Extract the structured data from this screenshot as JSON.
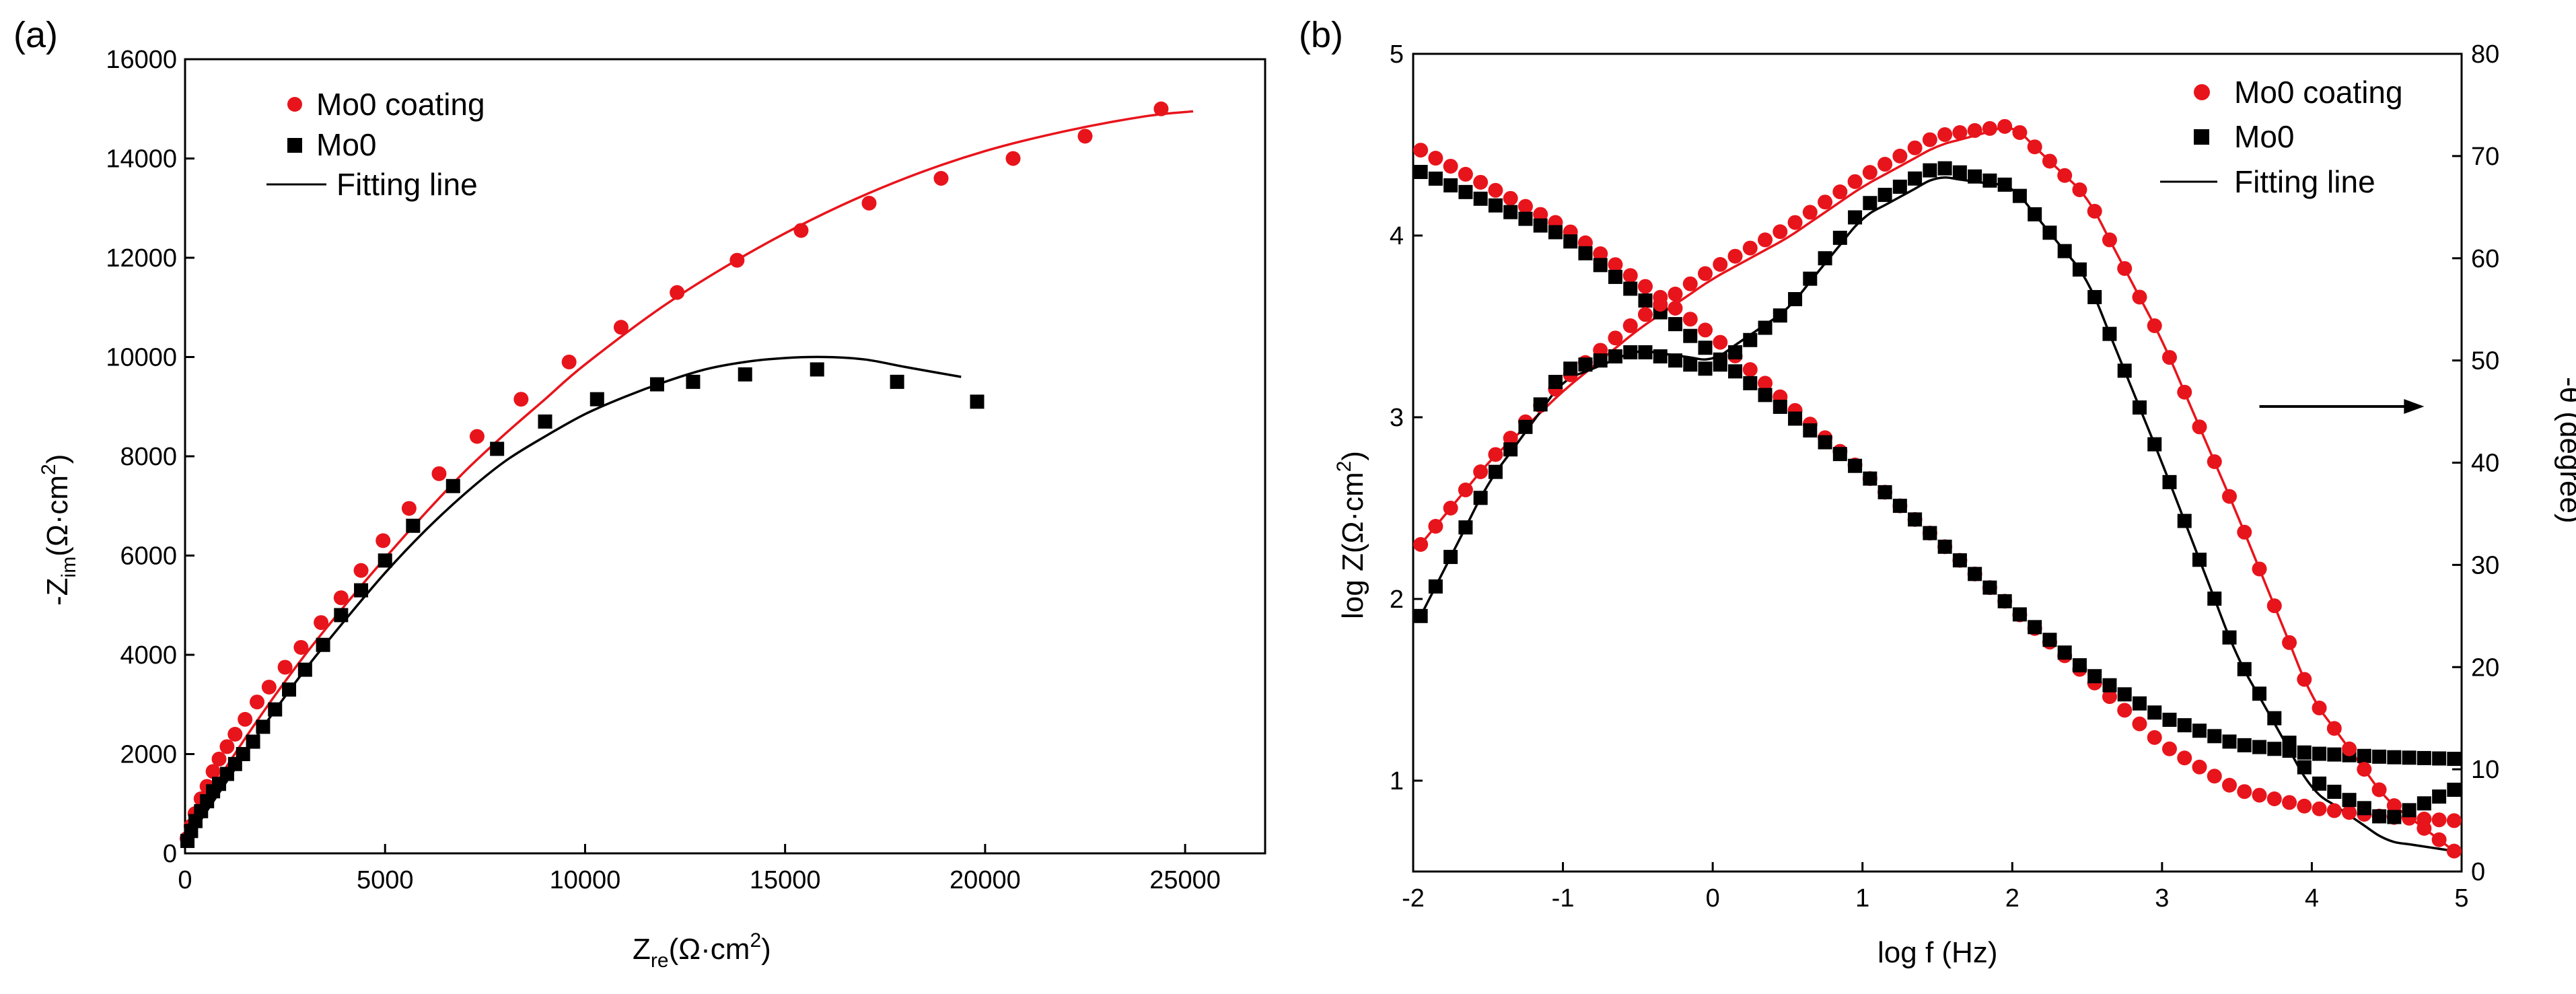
{
  "chart_data": [
    {
      "panel_label": "(a)",
      "type": "scatter",
      "xlabel": {
        "main": "Z",
        "sub": "re",
        "unit": "(Ω·cm",
        "sup": "2",
        "close": ")"
      },
      "ylabel": {
        "main": "-Z",
        "sub": "im",
        "unit": "(Ω·cm",
        "sup": "2",
        "close": ")"
      },
      "xlim": [
        0,
        27000
      ],
      "ylim": [
        0,
        16000
      ],
      "xticks": [
        0,
        5000,
        10000,
        15000,
        20000,
        25000
      ],
      "yticks": [
        0,
        2000,
        4000,
        6000,
        8000,
        10000,
        12000,
        14000,
        16000
      ],
      "grid": false,
      "legend_position": "top-left",
      "legend": [
        {
          "label": "Mo0 coating",
          "marker": "circle",
          "color": "#e8141b"
        },
        {
          "label": "Mo0",
          "marker": "square",
          "color": "#000000"
        },
        {
          "label": "Fitting line",
          "marker": "line",
          "color": "#000000"
        }
      ],
      "series": [
        {
          "name": "Mo0 coating",
          "color": "#e8141b",
          "marker": "circle",
          "x": [
            50,
            150,
            250,
            400,
            550,
            700,
            850,
            1050,
            1250,
            1500,
            1800,
            2100,
            2500,
            2900,
            3400,
            3900,
            4400,
            4950,
            5600,
            6350,
            7300,
            8400,
            9600,
            10900,
            12300,
            13800,
            15400,
            17100,
            18900,
            20700,
            22500,
            24400
          ],
          "y": [
            300,
            550,
            800,
            1100,
            1350,
            1650,
            1900,
            2150,
            2400,
            2700,
            3050,
            3350,
            3750,
            4150,
            4650,
            5150,
            5700,
            6300,
            6950,
            7650,
            8400,
            9150,
            9900,
            10600,
            11300,
            11950,
            12550,
            13100,
            13600,
            14000,
            14450,
            15000
          ]
        },
        {
          "name": "Mo0",
          "color": "#000000",
          "marker": "square",
          "x": [
            60,
            150,
            260,
            400,
            550,
            700,
            850,
            1050,
            1250,
            1450,
            1700,
            1950,
            2250,
            2600,
            3000,
            3450,
            3900,
            4400,
            5000,
            5700,
            6700,
            7800,
            9000,
            10300,
            11800,
            12700,
            14000,
            15800,
            17800,
            19800
          ],
          "y": [
            250,
            450,
            650,
            850,
            1050,
            1250,
            1400,
            1600,
            1800,
            2000,
            2250,
            2550,
            2900,
            3300,
            3700,
            4200,
            4800,
            5300,
            5900,
            6600,
            7400,
            8150,
            8700,
            9150,
            9450,
            9500,
            9650,
            9750,
            9500,
            9100
          ]
        },
        {
          "name": "Mo0 coating fit",
          "color": "#e8141b",
          "marker": "line",
          "x": [
            0,
            500,
            1000,
            2000,
            3000,
            4000,
            5000,
            6000,
            7000,
            8000,
            9000,
            10000,
            12000,
            14000,
            16000,
            18000,
            20000,
            22000,
            24000,
            25200
          ],
          "y": [
            200,
            1000,
            1700,
            2900,
            4000,
            5000,
            5950,
            6850,
            7700,
            8450,
            9150,
            9850,
            11050,
            12050,
            12900,
            13600,
            14150,
            14550,
            14850,
            14950
          ]
        },
        {
          "name": "Mo0 fit",
          "color": "#000000",
          "marker": "line",
          "x": [
            0,
            500,
            1000,
            2000,
            3000,
            4000,
            5000,
            6000,
            7000,
            8000,
            9000,
            10000,
            11000,
            12000,
            13000,
            14000,
            15000,
            16000,
            17000,
            18000,
            19400
          ],
          "y": [
            200,
            800,
            1400,
            2600,
            3700,
            4700,
            5650,
            6500,
            7250,
            7900,
            8400,
            8850,
            9200,
            9500,
            9750,
            9900,
            9980,
            10000,
            9950,
            9800,
            9600
          ]
        }
      ]
    },
    {
      "panel_label": "(b)",
      "type": "scatter",
      "xlabel": "log f (Hz)",
      "ylabel_left": {
        "main": "log Z(Ω·cm",
        "sup": "2",
        "close": ")"
      },
      "ylabel_right": "-θ (degree)",
      "xlim": [
        -2,
        5
      ],
      "ylim_left": [
        0.5,
        5
      ],
      "ylim_right": [
        0,
        80
      ],
      "xticks": [
        -2,
        -1,
        0,
        1,
        2,
        3,
        4,
        5
      ],
      "yticks_left": [
        1,
        2,
        3,
        4,
        5
      ],
      "yticks_right": [
        0,
        10,
        20,
        30,
        40,
        50,
        60,
        70,
        80
      ],
      "grid": false,
      "legend_position": "top-right",
      "legend": [
        {
          "label": "Mo0 coating",
          "marker": "circle",
          "color": "#e8141b"
        },
        {
          "label": "Mo0",
          "marker": "square",
          "color": "#000000"
        },
        {
          "label": "Fitting line",
          "marker": "line",
          "color": "#000000"
        }
      ],
      "annotation": {
        "type": "arrow",
        "direction": "right",
        "points_to": "right axis",
        "from": [
          3.65,
          45.5
        ],
        "to": [
          4.75,
          45.5
        ]
      },
      "sampling": {
        "x_start": -1.95,
        "x_end": 4.95,
        "step": 0.1
      },
      "series": [
        {
          "name": "Mo0 coating |Z|",
          "axis": "left",
          "color": "#e8141b",
          "marker": "circle",
          "x": [
            -1.95,
            -1,
            0,
            1,
            2,
            3,
            3.5,
            4,
            4.5,
            4.95
          ],
          "y": [
            4.47,
            4.05,
            3.45,
            2.7,
            1.95,
            1.2,
            0.95,
            0.85,
            0.8,
            0.78
          ]
        },
        {
          "name": "Mo0 |Z|",
          "axis": "left",
          "color": "#000000",
          "marker": "square",
          "x": [
            -1.95,
            -1,
            0,
            1,
            2,
            2.5,
            3,
            3.5,
            4,
            4.5,
            4.95
          ],
          "y": [
            4.35,
            4.0,
            3.35,
            2.7,
            1.95,
            1.6,
            1.35,
            1.2,
            1.15,
            1.13,
            1.12
          ]
        },
        {
          "name": "Mo0 coating phase",
          "axis": "right",
          "color": "#e8141b",
          "marker": "circle",
          "x": [
            -1.95,
            -1.5,
            -1,
            -0.5,
            0,
            0.5,
            1,
            1.5,
            2,
            2.5,
            3,
            3.5,
            4,
            4.5,
            4.95
          ],
          "y": [
            32,
            40,
            48,
            54,
            59,
            63,
            68,
            72,
            73,
            66,
            52,
            35,
            17,
            7,
            2
          ]
        },
        {
          "name": "Mo0 phase",
          "axis": "right",
          "color": "#000000",
          "marker": "square",
          "x": [
            -1.95,
            -1.5,
            -1,
            -0.5,
            0,
            0.5,
            1,
            1.5,
            2,
            2.5,
            3,
            3.5,
            4,
            4.5,
            4.95
          ],
          "y": [
            25,
            38,
            49,
            51,
            49,
            55,
            65,
            69,
            67,
            58,
            40,
            21,
            9,
            5,
            8
          ]
        },
        {
          "name": "Mo0 coating phase fit",
          "axis": "right",
          "color": "#e8141b",
          "marker": "line",
          "x": [
            -1.95,
            -1.5,
            -1,
            -0.5,
            0,
            0.5,
            1,
            1.5,
            2,
            2.5,
            3,
            3.5,
            4,
            4.5,
            4.95
          ],
          "y": [
            32,
            40,
            47,
            53,
            58,
            62,
            67,
            71,
            73,
            66,
            52,
            35,
            17,
            7,
            2
          ]
        },
        {
          "name": "Mo0 phase fit",
          "axis": "right",
          "color": "#000000",
          "marker": "line",
          "x": [
            -1.95,
            -1.5,
            -1,
            -0.5,
            0,
            0.5,
            1,
            1.5,
            2,
            2.5,
            3,
            3.5,
            4,
            4.5,
            4.95
          ],
          "y": [
            25,
            38,
            48,
            51,
            50,
            55,
            64,
            68,
            67,
            58,
            40,
            21,
            8,
            3,
            2
          ]
        }
      ]
    }
  ]
}
